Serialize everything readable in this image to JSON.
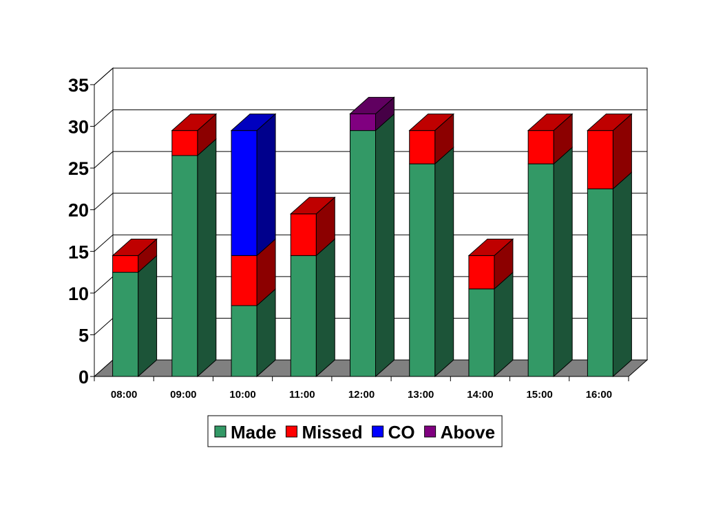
{
  "chart_data": {
    "type": "bar",
    "stacked": true,
    "three_d": true,
    "categories": [
      "08:00",
      "09:00",
      "10:00",
      "11:00",
      "12:00",
      "13:00",
      "14:00",
      "15:00",
      "16:00"
    ],
    "series": [
      {
        "name": "Made",
        "color": "#339966",
        "values": [
          12.5,
          26.5,
          8.5,
          14.5,
          29.5,
          25.5,
          10.5,
          25.5,
          22.5
        ]
      },
      {
        "name": "Missed",
        "color": "#ff0000",
        "values": [
          2,
          3,
          6,
          5,
          0,
          4,
          4,
          4,
          7
        ]
      },
      {
        "name": "CO",
        "color": "#0000ff",
        "values": [
          0,
          0,
          15,
          0,
          0,
          0,
          0,
          0,
          0
        ]
      },
      {
        "name": "Above",
        "color": "#800080",
        "values": [
          0,
          0,
          0,
          0,
          2,
          0,
          0,
          0,
          0
        ]
      }
    ],
    "yticks": [
      "0",
      "5",
      "10",
      "15",
      "20",
      "25",
      "30",
      "35"
    ],
    "ylim": [
      0,
      35
    ],
    "title": "",
    "xlabel": "",
    "ylabel": "",
    "grid": true,
    "legend_position": "bottom"
  }
}
